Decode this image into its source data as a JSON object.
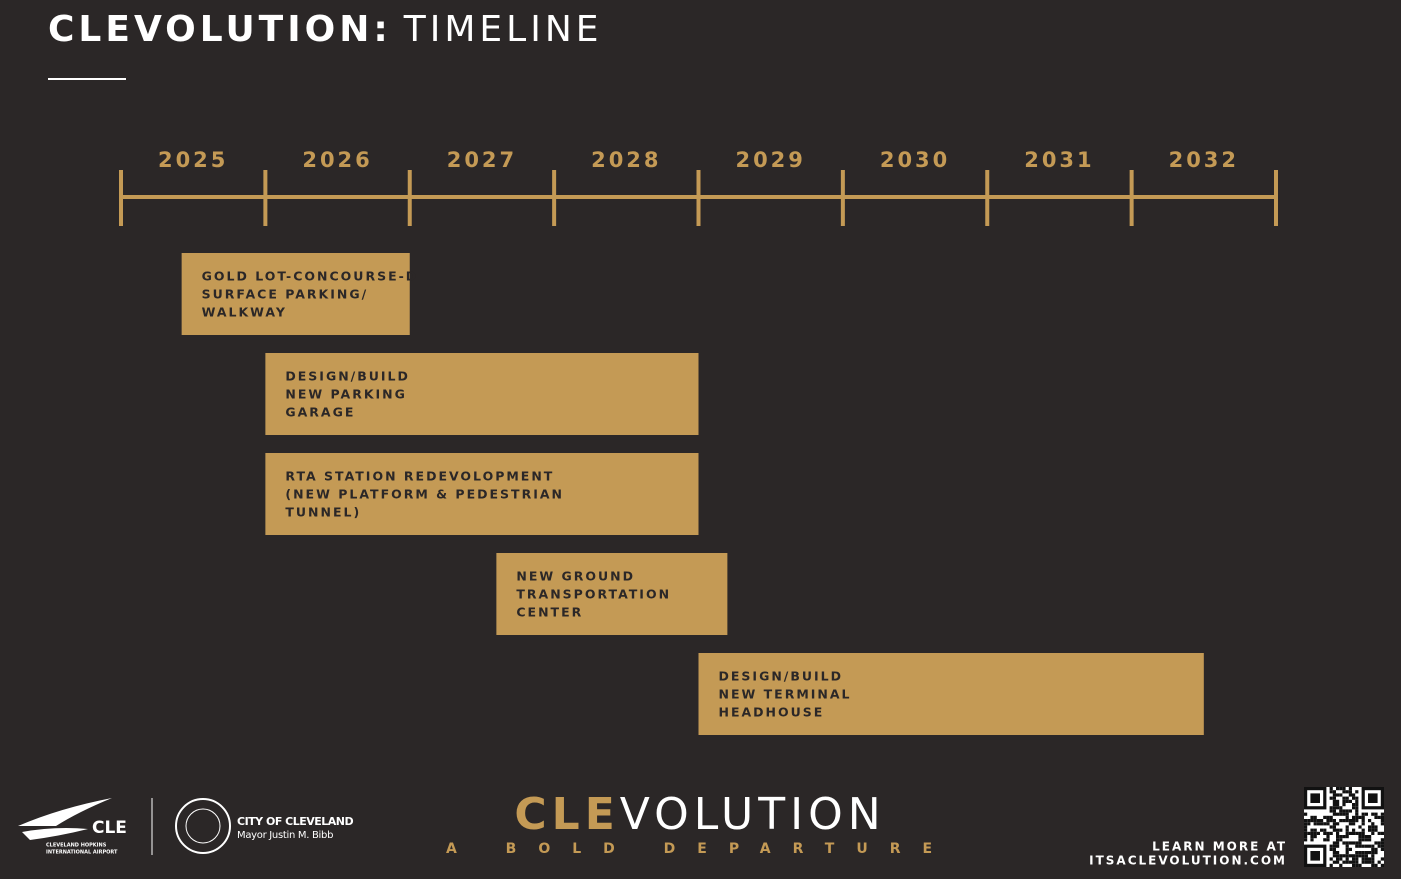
{
  "header": {
    "title": [
      "CLEVOLUTION:",
      "TIMELINE"
    ]
  },
  "chart_data": {
    "type": "gantt",
    "color": "#c49a55",
    "categories": [
      "2025",
      "2026",
      "2027",
      "2028",
      "2029",
      "2030",
      "2031",
      "2032"
    ],
    "xlim": [
      2025,
      2033
    ],
    "tasks": [
      {
        "name": [
          "GOLD LOT-CONCOURSE-D",
          "SURFACE PARKING/",
          "WALKWAY"
        ],
        "start": 2025.42,
        "end": 2027.0
      },
      {
        "name": [
          "DESIGN/BUILD",
          "NEW PARKING",
          "GARAGE"
        ],
        "start": 2026.0,
        "end": 2029.0
      },
      {
        "name": [
          "RTA STATION REDEVOLOPMENT",
          "(NEW PLATFORM & PEDESTRIAN",
          "TUNNEL)"
        ],
        "start": 2026.0,
        "end": 2029.0
      },
      {
        "name": [
          "NEW GROUND",
          "TRANSPORTATION",
          "CENTER"
        ],
        "start": 2027.6,
        "end": 2029.2
      },
      {
        "name": [
          "DESIGN/BUILD",
          "NEW TERMINAL",
          "HEADHOUSE"
        ],
        "start": 2029.0,
        "end": 2032.5
      }
    ]
  },
  "footer": {
    "airport_logo": "CLE",
    "airport_name": [
      "CLEVELAND HOPKINS",
      "INTERNATIONAL AIRPORT"
    ],
    "city": "CITY OF CLEVELAND",
    "mayor": "Mayor Justin M. Bibb",
    "brand": [
      "CLE",
      "VOLUTION"
    ],
    "tagline": "A BOLD DEPARTURE",
    "learn_more": "LEARN MORE AT",
    "url": "ITSACLEVOLUTION.COM"
  }
}
